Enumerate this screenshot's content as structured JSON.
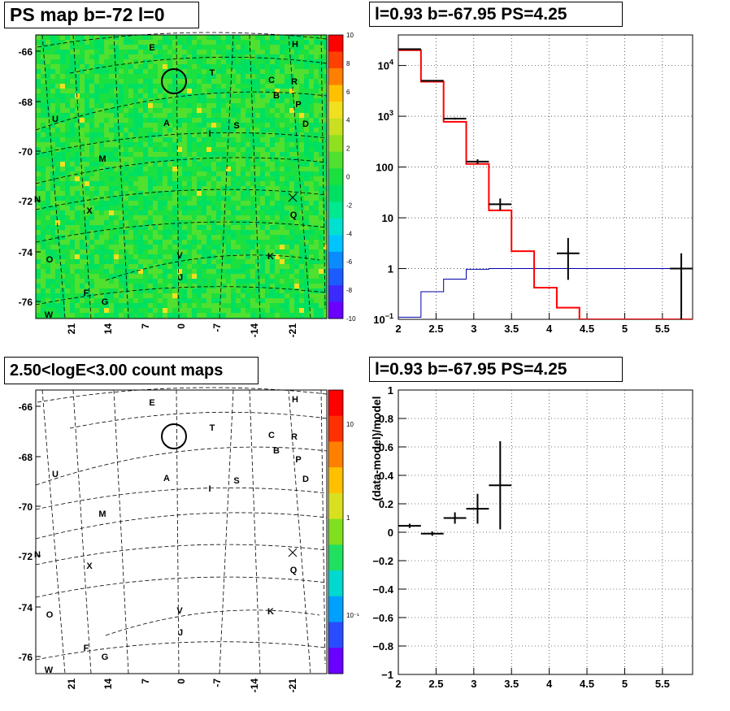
{
  "titles": {
    "ps_map": "PS map b=-72 l=0",
    "spectrum": "l=0.93 b=-67.95 PS=4.25",
    "count_map": "2.50<logE<3.00 count maps",
    "residual": "l=0.93 b=-67.95 PS=4.25"
  },
  "colors": {
    "ps_palette": [
      "#6a00ff",
      "#3b2bff",
      "#1c5cff",
      "#0a8cff",
      "#00c4ff",
      "#00e0d0",
      "#00e890",
      "#00e060",
      "#1ae040",
      "#50e030",
      "#90e020",
      "#c8e020",
      "#f0e020",
      "#ffc000",
      "#ff8000",
      "#ff4000",
      "#ff0000"
    ],
    "count_palette": [
      "#6a00ff",
      "#2a4cff",
      "#00a0ff",
      "#00d8d0",
      "#20e060",
      "#80e020",
      "#d8e020",
      "#ffc000",
      "#ff8000",
      "#ff3000",
      "#ff0000"
    ],
    "model_red": "#ff0000",
    "model_blue": "#0000aa"
  },
  "maps": {
    "y_ticks": [
      "-66",
      "-68",
      "-70",
      "-72",
      "-74",
      "-76"
    ],
    "x_ticks": [
      "21",
      "14",
      "7",
      "0",
      "-7",
      "-14",
      "-21"
    ],
    "ps_colorbar_ticks": [
      "10",
      "8",
      "6",
      "4",
      "2",
      "0",
      "-2",
      "-4",
      "-6",
      "-8",
      "-10"
    ],
    "count_colorbar_ticks": [
      "10",
      "1",
      "10⁻¹"
    ],
    "labels": [
      "E",
      "H",
      "T",
      "C",
      "R",
      "B",
      "P",
      "U",
      "A",
      "I",
      "S",
      "D",
      "M",
      "N",
      "X",
      "Q",
      "O",
      "V",
      "K",
      "J",
      "F",
      "G",
      "W"
    ]
  },
  "chart_data": [
    {
      "type": "heatmap",
      "name": "ps_map",
      "title": "PS map b=-72 l=0",
      "ylim": [
        -77,
        -65
      ],
      "xlim": [
        28,
        -28
      ],
      "colorbar_range": [
        -10,
        10
      ],
      "y_ticks": [
        -66,
        -68,
        -70,
        -72,
        -74,
        -76
      ],
      "x_ticks": [
        21,
        14,
        7,
        0,
        -7,
        -14,
        -21
      ],
      "marked_source": {
        "l": 0.93,
        "b": -67.95
      }
    },
    {
      "type": "line",
      "name": "spectrum",
      "title": "l=0.93 b=-67.95 PS=4.25",
      "x_scale": "linear",
      "y_scale": "log",
      "xlim": [
        2,
        5.9
      ],
      "ylim": [
        0.1,
        40000
      ],
      "x_ticks": [
        2,
        2.5,
        3,
        3.5,
        4,
        4.5,
        5,
        5.5
      ],
      "y_ticks": [
        0.1,
        1,
        10,
        100,
        1000,
        10000
      ],
      "bin_edges": [
        2,
        2.3,
        2.6,
        2.9,
        3.2,
        3.5,
        3.8,
        4.1,
        4.4,
        4.7,
        5.0,
        5.3,
        5.6,
        5.9
      ],
      "series": [
        {
          "values": [
            20000,
            4800,
            780,
            115,
            14,
            2.2,
            0.42,
            0.17,
            0.1,
            0.1,
            0.1,
            0.1,
            0.1
          ]
        },
        {
          "values": [
            0.11,
            0.35,
            0.62,
            0.97,
            1,
            1,
            1,
            1,
            1,
            1,
            1,
            1,
            1
          ]
        },
        {
          "points": [
            {
              "x": 2.15,
              "y": 21000,
              "xerr": 0.15,
              "ylo": 20500,
              "yhi": 21500
            },
            {
              "x": 2.45,
              "y": 5000,
              "xerr": 0.15,
              "ylo": 4900,
              "yhi": 5100
            },
            {
              "x": 2.75,
              "y": 900,
              "xerr": 0.15,
              "ylo": 860,
              "yhi": 940
            },
            {
              "x": 3.05,
              "y": 128,
              "xerr": 0.15,
              "ylo": 115,
              "yhi": 142
            },
            {
              "x": 3.35,
              "y": 18.5,
              "xerr": 0.15,
              "ylo": 14,
              "yhi": 24
            },
            {
              "x": 4.25,
              "y": 2,
              "xerr": 0.15,
              "ylo": 0.6,
              "yhi": 4
            },
            {
              "x": 5.75,
              "y": 1,
              "xerr": 0.15,
              "ylo": 0.1,
              "yhi": 2
            }
          ]
        }
      ]
    },
    {
      "type": "heatmap",
      "name": "count_map",
      "title": "2.50<logE<3.00 count maps",
      "ylim": [
        -77,
        -65
      ],
      "xlim": [
        28,
        -28
      ],
      "colorbar_scale": "log",
      "colorbar_range": [
        0.03,
        30
      ],
      "y_ticks": [
        -66,
        -68,
        -70,
        -72,
        -74,
        -76
      ],
      "x_ticks": [
        21,
        14,
        7,
        0,
        -7,
        -14,
        -21
      ],
      "marked_source": {
        "l": 0.93,
        "b": -67.95
      }
    },
    {
      "type": "scatter",
      "name": "residual",
      "title": "l=0.93 b=-67.95 PS=4.25",
      "ylabel": "(data-model)/model",
      "xlim": [
        2,
        5.9
      ],
      "ylim": [
        -1,
        1
      ],
      "x_ticks": [
        2,
        2.5,
        3,
        3.5,
        4,
        4.5,
        5,
        5.5
      ],
      "y_ticks": [
        -1,
        -0.8,
        -0.6,
        -0.4,
        -0.2,
        0,
        0.2,
        0.4,
        0.6,
        0.8,
        1
      ],
      "points": [
        {
          "x": 2.15,
          "y": 0.045,
          "xerr": 0.15,
          "ylo": 0.03,
          "yhi": 0.06
        },
        {
          "x": 2.45,
          "y": -0.01,
          "xerr": 0.15,
          "ylo": -0.025,
          "yhi": 0.005
        },
        {
          "x": 2.75,
          "y": 0.1,
          "xerr": 0.15,
          "ylo": 0.06,
          "yhi": 0.14
        },
        {
          "x": 3.05,
          "y": 0.165,
          "xerr": 0.15,
          "ylo": 0.06,
          "yhi": 0.27
        },
        {
          "x": 3.35,
          "y": 0.33,
          "xerr": 0.15,
          "ylo": 0.02,
          "yhi": 0.64
        }
      ]
    }
  ]
}
